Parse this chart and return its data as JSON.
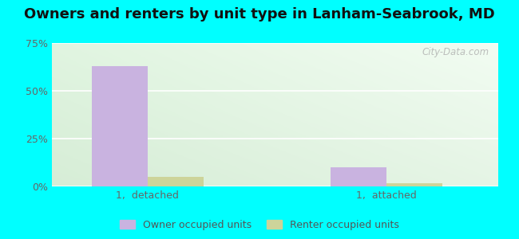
{
  "title": "Owners and renters by unit type in Lanham-Seabrook, MD",
  "title_fontsize": 13,
  "categories": [
    "1,  detached",
    "1,  attached"
  ],
  "owner_values": [
    63,
    10
  ],
  "renter_values": [
    5,
    1.5
  ],
  "owner_color": "#c9b3e0",
  "renter_color": "#cdd49a",
  "ylim": [
    0,
    75
  ],
  "yticks": [
    0,
    25,
    50,
    75
  ],
  "yticklabels": [
    "0%",
    "25%",
    "50%",
    "75%"
  ],
  "outer_bg": "#00ffff",
  "plot_bg_left": "#ddeedd",
  "plot_bg_right": "#eef6ee",
  "legend_labels": [
    "Owner occupied units",
    "Renter occupied units"
  ],
  "watermark": "City-Data.com",
  "bar_width": 0.35,
  "group_positions": [
    1.0,
    2.5
  ],
  "xlim": [
    0.4,
    3.2
  ]
}
